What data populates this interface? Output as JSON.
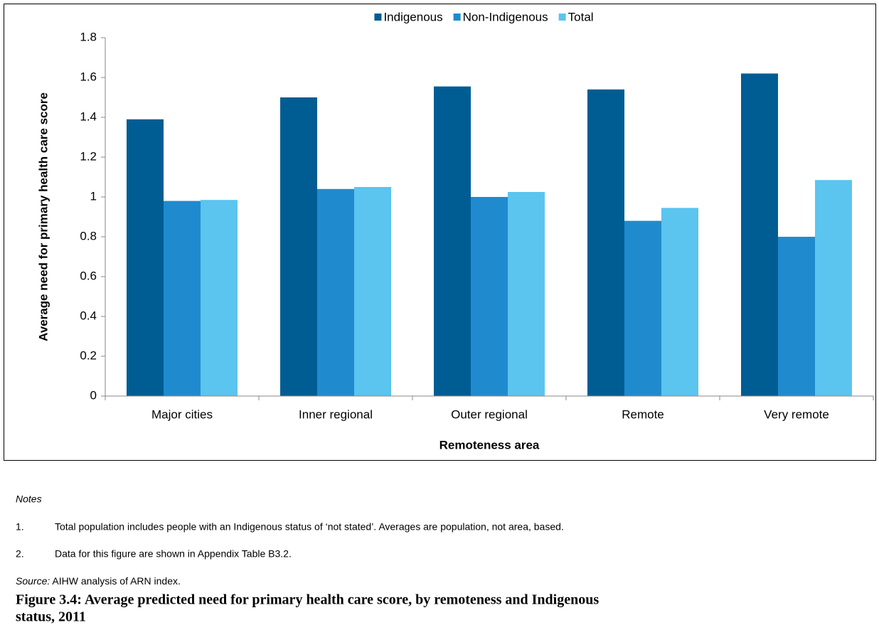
{
  "chart_data": {
    "type": "bar",
    "x_label": "Remoteness area",
    "y_label": "Average need for primary health care score",
    "categories": [
      "Major cities",
      "Inner regional",
      "Outer regional",
      "Remote",
      "Very remote"
    ],
    "series": [
      {
        "name": "Indigenous",
        "color": "#005d93",
        "values": [
          1.39,
          1.5,
          1.555,
          1.54,
          1.62
        ]
      },
      {
        "name": "Non-Indigenous",
        "color": "#1f8bce",
        "values": [
          0.98,
          1.04,
          1.0,
          0.88,
          0.8
        ]
      },
      {
        "name": "Total",
        "color": "#5bc4ef",
        "values": [
          0.985,
          1.05,
          1.025,
          0.945,
          1.085
        ]
      }
    ],
    "ylim": [
      0,
      1.8
    ],
    "yticks": [
      0,
      0.2,
      0.4,
      0.6,
      0.8,
      1,
      1.2,
      1.4,
      1.6,
      1.8
    ],
    "grid": false,
    "legend": "top"
  },
  "notes": {
    "heading": "Notes",
    "items": [
      {
        "number": "1.",
        "text": "Total population includes people with an Indigenous status of ‘not stated’. Averages are population, not area, based."
      },
      {
        "number": "2.",
        "text": "Data for this figure are shown in Appendix Table B3.2."
      }
    ],
    "source_label": "Source:",
    "source_text": "AIHW analysis of ARN index."
  },
  "caption": {
    "line1": "Figure 3.4: Average predicted need for primary health care score, by remoteness and Indigenous",
    "line2": "status, 2011"
  }
}
